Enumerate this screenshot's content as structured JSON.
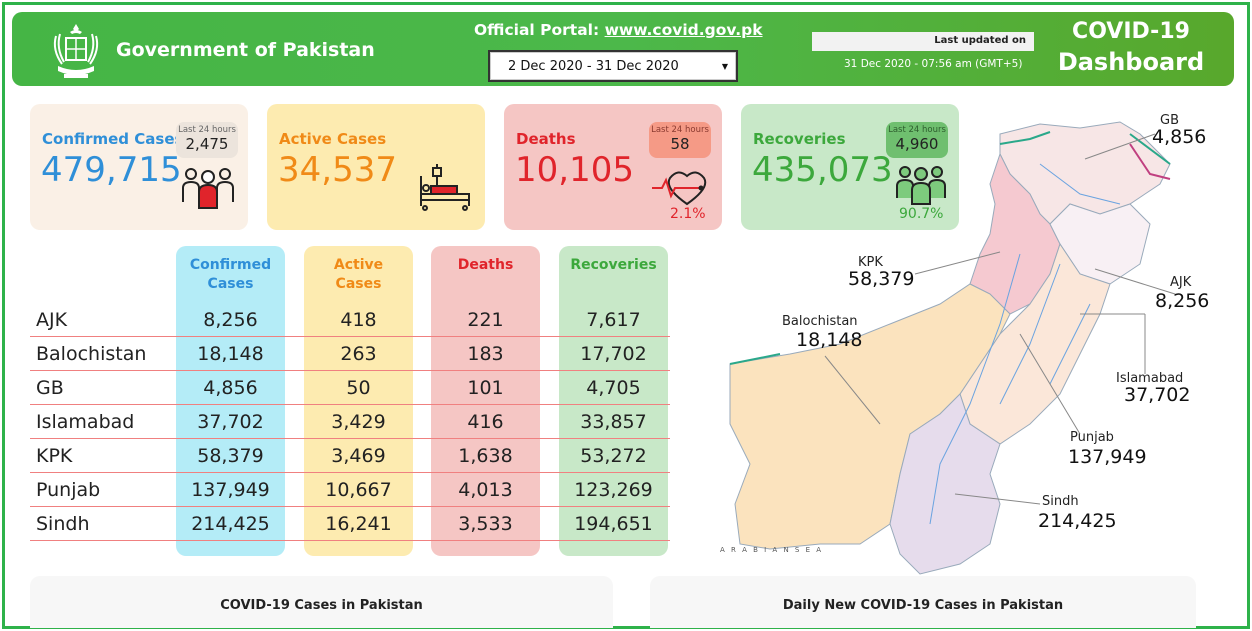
{
  "header": {
    "gov_title": "Government of Pakistan",
    "portal_prefix": "Official Portal:",
    "portal_url": "www.covid.gov.pk",
    "date_range": "2 Dec 2020 - 31 Dec 2020",
    "last_updated_label": "Last updated on",
    "last_updated_time": "31 Dec 2020 - 07:56 am (GMT+5)",
    "dashboard_title_1": "COVID-19",
    "dashboard_title_2": "Dashboard"
  },
  "cards": {
    "confirmed": {
      "label": "Confirmed Cases",
      "value": "479,715",
      "last24_label": "Last 24 hours",
      "last24_value": "2,475",
      "color": "#2f8fd8"
    },
    "active": {
      "label": "Active Cases",
      "value": "34,537",
      "color": "#f08a17"
    },
    "deaths": {
      "label": "Deaths",
      "value": "10,105",
      "last24_label": "Last 24 hours",
      "last24_value": "58",
      "pct": "2.1%",
      "color": "#e0242b"
    },
    "recoveries": {
      "label": "Recoveries",
      "value": "435,073",
      "last24_label": "Last 24 hours",
      "last24_value": "4,960",
      "pct": "90.7%",
      "color": "#3ca83c"
    }
  },
  "table": {
    "headers": {
      "confirmed_1": "Confirmed",
      "confirmed_2": "Cases",
      "active_1": "Active",
      "active_2": "Cases",
      "deaths": "Deaths",
      "recoveries": "Recoveries"
    },
    "rows": [
      {
        "name": "AJK",
        "confirmed": "8,256",
        "active": "418",
        "deaths": "221",
        "recoveries": "7,617"
      },
      {
        "name": "Balochistan",
        "confirmed": "18,148",
        "active": "263",
        "deaths": "183",
        "recoveries": "17,702"
      },
      {
        "name": "GB",
        "confirmed": "4,856",
        "active": "50",
        "deaths": "101",
        "recoveries": "4,705"
      },
      {
        "name": "Islamabad",
        "confirmed": "37,702",
        "active": "3,429",
        "deaths": "416",
        "recoveries": "33,857"
      },
      {
        "name": "KPK",
        "confirmed": "58,379",
        "active": "3,469",
        "deaths": "1,638",
        "recoveries": "53,272"
      },
      {
        "name": "Punjab",
        "confirmed": "137,949",
        "active": "10,667",
        "deaths": "4,013",
        "recoveries": "123,269"
      },
      {
        "name": "Sindh",
        "confirmed": "214,425",
        "active": "16,241",
        "deaths": "3,533",
        "recoveries": "194,651"
      }
    ]
  },
  "map": {
    "gb": {
      "label": "GB",
      "value": "4,856"
    },
    "kpk": {
      "label": "KPK",
      "value": "58,379"
    },
    "ajk": {
      "label": "AJK",
      "value": "8,256"
    },
    "balochistan": {
      "label": "Balochistan",
      "value": "18,148"
    },
    "islamabad": {
      "label": "Islamabad",
      "value": "37,702"
    },
    "punjab": {
      "label": "Punjab",
      "value": "137,949"
    },
    "sindh": {
      "label": "Sindh",
      "value": "214,425"
    },
    "sea_label": "A R A B I A N   S E A"
  },
  "panels": {
    "left_title": "COVID-19 Cases in Pakistan",
    "right_title": "Daily New COVID-19 Cases in Pakistan"
  }
}
